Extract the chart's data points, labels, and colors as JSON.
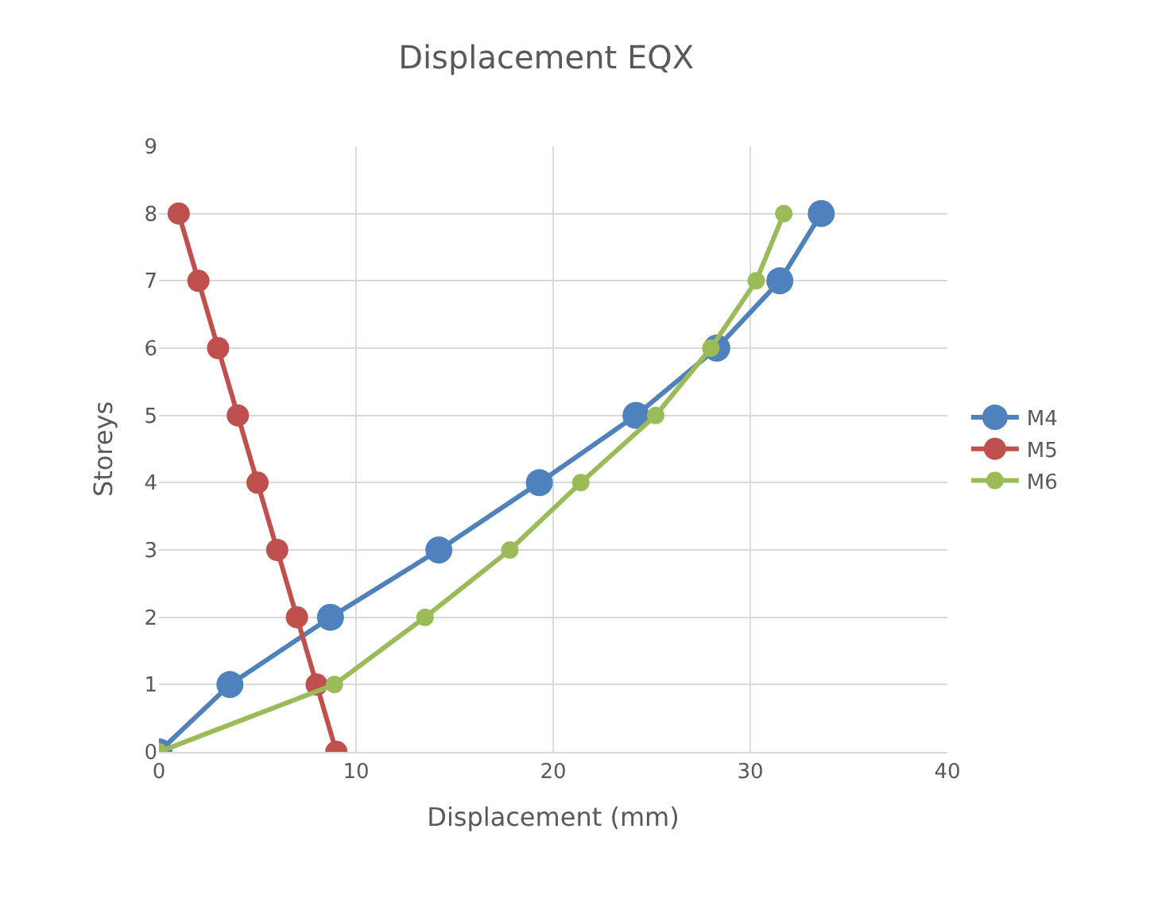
{
  "chart_data": {
    "type": "line",
    "title": "Displacement EQX",
    "xlabel": "Displacement (mm)",
    "ylabel": "Storeys",
    "xlim": [
      0,
      40
    ],
    "xticks": [
      0,
      10,
      20,
      30,
      40
    ],
    "ylim": [
      0,
      9
    ],
    "yticks": [
      0,
      1,
      2,
      3,
      4,
      5,
      6,
      7,
      8,
      9
    ],
    "grid": true,
    "legend": "right",
    "marker": "circle",
    "line_style": "solid",
    "series": [
      {
        "name": "M4",
        "color": "#4f81bd",
        "x": [
          0,
          3.6,
          8.7,
          14.2,
          19.3,
          24.2,
          28.3,
          31.5,
          33.6
        ],
        "values": [
          0,
          1,
          2,
          3,
          4,
          5,
          6,
          7,
          8
        ]
      },
      {
        "name": "M5",
        "color": "#c0504d",
        "x": [
          9.0,
          8.0,
          7.0,
          6.0,
          5.0,
          4.0,
          3.0,
          2.0,
          1.0
        ],
        "values": [
          0,
          1,
          2,
          3,
          4,
          5,
          6,
          7,
          8
        ]
      },
      {
        "name": "M6",
        "color": "#9bbb59",
        "x": [
          0,
          8.9,
          13.5,
          17.8,
          21.4,
          25.2,
          28.0,
          30.3,
          31.7
        ],
        "values": [
          0,
          1,
          2,
          3,
          4,
          5,
          6,
          7,
          8
        ]
      }
    ]
  }
}
